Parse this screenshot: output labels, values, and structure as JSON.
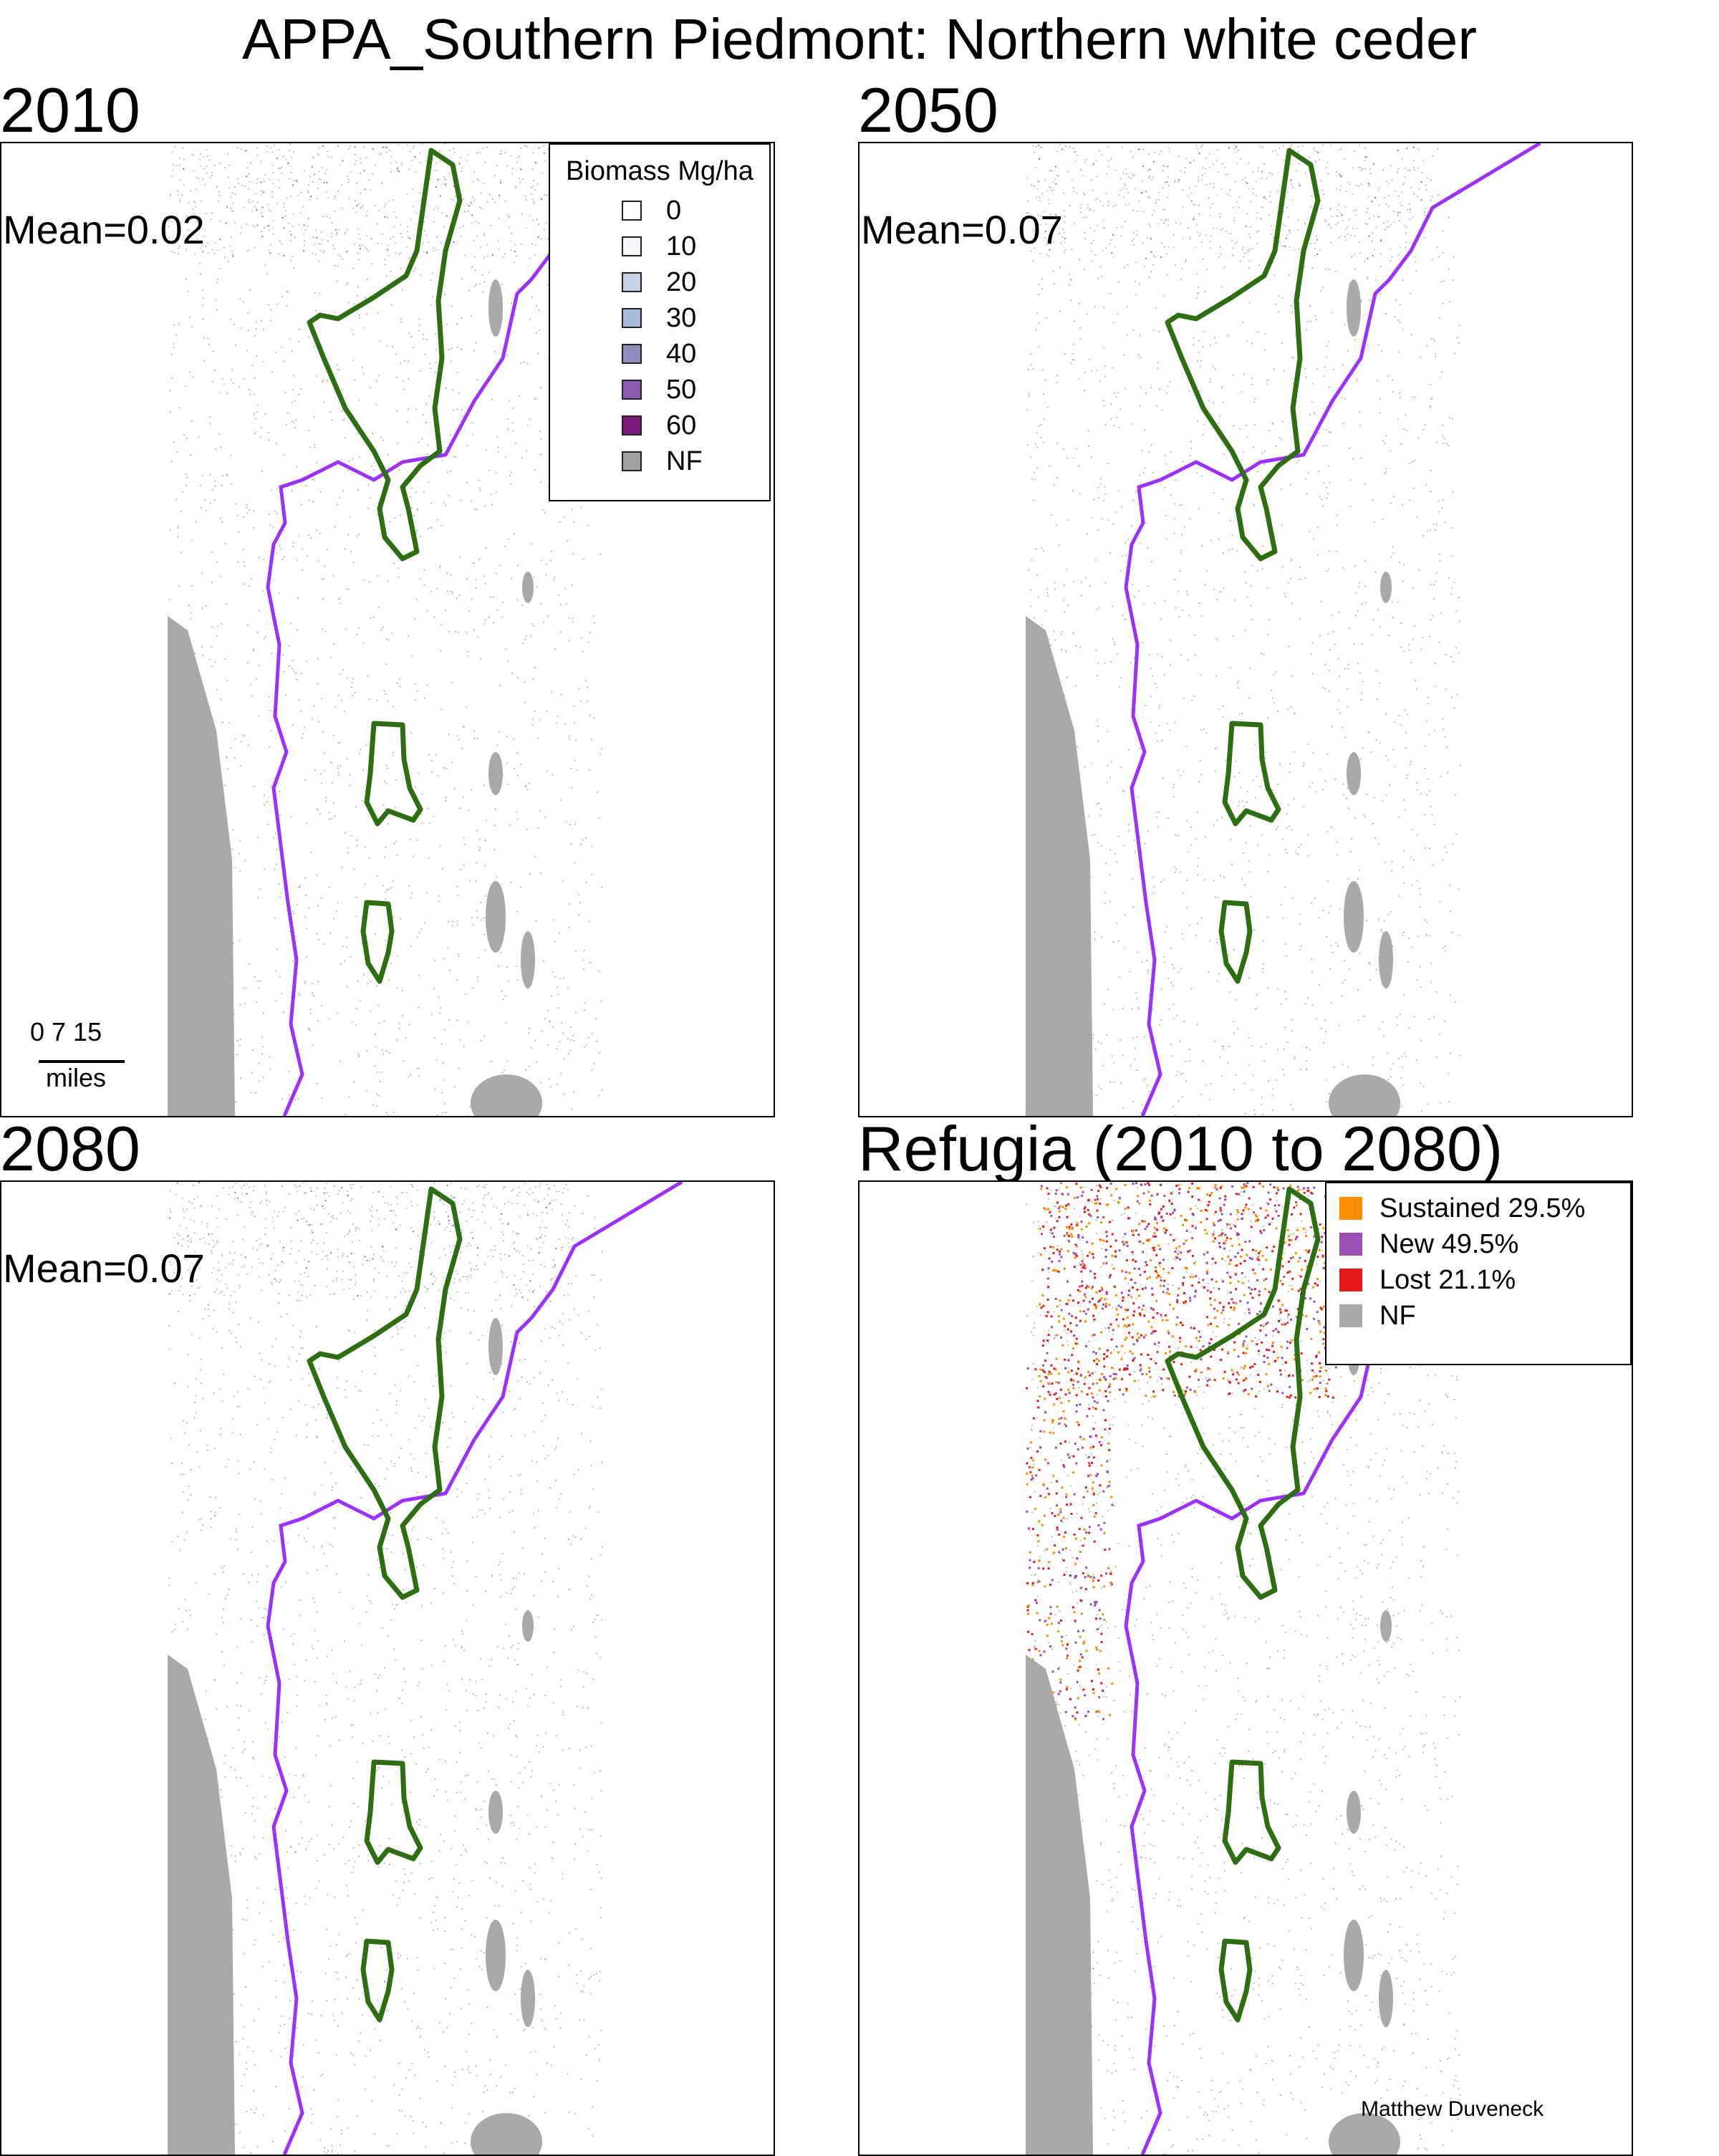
{
  "title": "APPA_Southern Piedmont: Northern white ceder",
  "colors": {
    "ecoregion_boundary": "#2e6e12",
    "state_boundary": "#9b30ff",
    "nonforest": "#a9a9a9",
    "biomass_scale": [
      "#ffffff",
      "#f4f6fa",
      "#c6d3e5",
      "#a9bad6",
      "#8e8fbf",
      "#8c5aae",
      "#7a1a7a",
      "#a0a0a0"
    ],
    "refugia_scale": [
      "#ff8c00",
      "#9b4fb4",
      "#e6191a",
      "#a9a9a9"
    ]
  },
  "panels": [
    {
      "title": "2010",
      "mean_label": "Mean=0.02",
      "mean_value": 0.02
    },
    {
      "title": "2050",
      "mean_label": "Mean=0.07",
      "mean_value": 0.07
    },
    {
      "title": "2080",
      "mean_label": "Mean=0.07",
      "mean_value": 0.07
    },
    {
      "title": "Refugia (2010 to 2080)"
    }
  ],
  "biomass_legend": {
    "title": "Biomass Mg/ha",
    "items": [
      {
        "label": "0",
        "color": "#ffffff"
      },
      {
        "label": "10",
        "color": "#f4f6fa"
      },
      {
        "label": "20",
        "color": "#c6d3e5"
      },
      {
        "label": "30",
        "color": "#a9bad6"
      },
      {
        "label": "40",
        "color": "#8e8fbf"
      },
      {
        "label": "50",
        "color": "#8c5aae"
      },
      {
        "label": "60",
        "color": "#7a1a7a"
      },
      {
        "label": "NF",
        "color": "#a0a0a0"
      }
    ]
  },
  "refugia_legend": {
    "items": [
      {
        "label": "Sustained 29.5%",
        "color": "#ff8c00",
        "percent": 29.5
      },
      {
        "label": "New 49.5%",
        "color": "#9b4fb4",
        "percent": 49.5
      },
      {
        "label": "Lost 21.1%",
        "color": "#e6191a",
        "percent": 21.1
      },
      {
        "label": "NF",
        "color": "#a9a9a9"
      }
    ]
  },
  "scalebar": {
    "ticks": "0 7 15",
    "unit": "miles"
  },
  "credit": "Matthew Duveneck"
}
